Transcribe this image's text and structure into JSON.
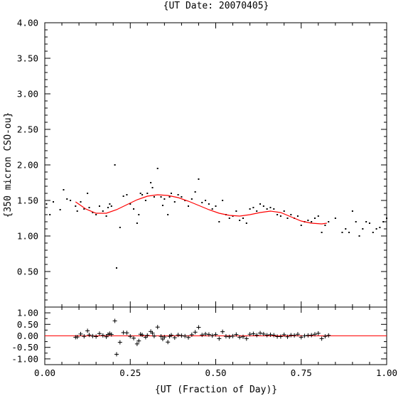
{
  "chart_data": [
    {
      "type": "scatter",
      "title": "{UT Date: 20070405}",
      "xlabel": "",
      "ylabel": "{350 micron CSO-ou}",
      "xlim": [
        0.0,
        1.0
      ],
      "ylim": [
        0.0,
        4.0
      ],
      "yticks": [
        0.5,
        1.0,
        1.5,
        2.0,
        2.5,
        3.0,
        3.5,
        4.0
      ],
      "ytick_labels": [
        "0.50",
        "1.00",
        "1.50",
        "2.00",
        "2.50",
        "3.00",
        "3.50",
        "4.00"
      ],
      "grid": false,
      "colors": {
        "points": "#000000",
        "fit": "#ff0000"
      },
      "series": [
        {
          "kind": "points",
          "x": [
            0.005,
            0.015,
            0.025,
            0.045,
            0.055,
            0.065,
            0.075,
            0.09,
            0.095,
            0.105,
            0.115,
            0.125,
            0.13,
            0.14,
            0.15,
            0.16,
            0.17,
            0.18,
            0.185,
            0.19,
            0.195,
            0.205,
            0.21,
            0.22,
            0.23,
            0.24,
            0.25,
            0.26,
            0.27,
            0.275,
            0.28,
            0.285,
            0.295,
            0.3,
            0.31,
            0.315,
            0.32,
            0.33,
            0.34,
            0.345,
            0.35,
            0.36,
            0.365,
            0.37,
            0.38,
            0.39,
            0.4,
            0.41,
            0.42,
            0.43,
            0.44,
            0.45,
            0.46,
            0.47,
            0.48,
            0.49,
            0.5,
            0.51,
            0.52,
            0.53,
            0.54,
            0.55,
            0.56,
            0.57,
            0.58,
            0.59,
            0.6,
            0.61,
            0.62,
            0.63,
            0.64,
            0.65,
            0.66,
            0.67,
            0.68,
            0.69,
            0.7,
            0.71,
            0.72,
            0.73,
            0.74,
            0.75,
            0.76,
            0.77,
            0.78,
            0.79,
            0.8,
            0.81,
            0.82,
            0.83,
            0.85,
            0.87,
            0.88,
            0.89,
            0.9,
            0.91,
            0.92,
            0.93,
            0.94,
            0.95,
            0.96,
            0.97,
            0.98,
            0.99,
            1.0
          ],
          "y": [
            1.45,
            1.3,
            1.48,
            1.37,
            1.65,
            1.52,
            1.5,
            1.42,
            1.35,
            1.48,
            1.38,
            1.6,
            1.4,
            1.33,
            1.3,
            1.42,
            1.35,
            1.28,
            1.4,
            1.45,
            1.42,
            2.0,
            0.55,
            1.12,
            1.56,
            1.58,
            1.45,
            1.38,
            1.18,
            1.3,
            1.6,
            1.58,
            1.5,
            1.6,
            1.75,
            1.68,
            1.55,
            1.95,
            1.55,
            1.43,
            1.52,
            1.3,
            1.55,
            1.6,
            1.48,
            1.58,
            1.55,
            1.5,
            1.42,
            1.52,
            1.62,
            1.8,
            1.47,
            1.5,
            1.45,
            1.38,
            1.42,
            1.2,
            1.5,
            1.3,
            1.25,
            1.28,
            1.35,
            1.22,
            1.25,
            1.18,
            1.38,
            1.4,
            1.35,
            1.45,
            1.42,
            1.38,
            1.4,
            1.38,
            1.3,
            1.28,
            1.35,
            1.25,
            1.3,
            1.25,
            1.28,
            1.15,
            1.2,
            1.22,
            1.2,
            1.25,
            1.28,
            1.05,
            1.15,
            1.2,
            1.25,
            1.05,
            1.1,
            1.05,
            1.35,
            1.2,
            1.0,
            1.1,
            1.2,
            1.18,
            1.05,
            1.1,
            1.12,
            1.2,
            1.25
          ]
        },
        {
          "kind": "fit",
          "x": [
            0.09,
            0.12,
            0.15,
            0.18,
            0.21,
            0.24,
            0.27,
            0.3,
            0.33,
            0.36,
            0.39,
            0.42,
            0.45,
            0.48,
            0.51,
            0.54,
            0.57,
            0.6,
            0.63,
            0.66,
            0.69,
            0.72,
            0.75,
            0.78,
            0.81,
            0.825
          ],
          "y": [
            1.48,
            1.38,
            1.32,
            1.32,
            1.37,
            1.44,
            1.51,
            1.56,
            1.58,
            1.57,
            1.54,
            1.49,
            1.43,
            1.37,
            1.32,
            1.29,
            1.28,
            1.3,
            1.33,
            1.35,
            1.33,
            1.27,
            1.21,
            1.18,
            1.17,
            1.18
          ]
        }
      ]
    },
    {
      "type": "scatter",
      "title": "",
      "xlabel": "{UT (Fraction of Day)}",
      "ylabel": "",
      "xlim": [
        0.0,
        1.0
      ],
      "ylim": [
        -1.25,
        1.25
      ],
      "xticks": [
        0.0,
        0.25,
        0.5,
        0.75,
        1.0
      ],
      "xtick_labels": [
        "0.00",
        "0.25",
        "0.50",
        "0.75",
        "1.00"
      ],
      "yticks": [
        -1.0,
        -0.5,
        0.0,
        0.5,
        1.0
      ],
      "ytick_labels": [
        "-1.00",
        "-0.50",
        "0.00",
        "0.50",
        "1.00"
      ],
      "grid": false,
      "colors": {
        "points": "#000000",
        "zero_line": "#ff0000"
      },
      "series": [
        {
          "kind": "residuals",
          "x": [
            0.09,
            0.095,
            0.105,
            0.115,
            0.125,
            0.13,
            0.14,
            0.15,
            0.16,
            0.17,
            0.18,
            0.185,
            0.19,
            0.195,
            0.205,
            0.21,
            0.22,
            0.23,
            0.24,
            0.25,
            0.26,
            0.27,
            0.275,
            0.28,
            0.285,
            0.295,
            0.3,
            0.31,
            0.315,
            0.32,
            0.33,
            0.34,
            0.345,
            0.35,
            0.36,
            0.365,
            0.37,
            0.38,
            0.39,
            0.4,
            0.41,
            0.42,
            0.43,
            0.44,
            0.45,
            0.46,
            0.47,
            0.48,
            0.49,
            0.5,
            0.51,
            0.52,
            0.53,
            0.54,
            0.55,
            0.56,
            0.57,
            0.58,
            0.59,
            0.6,
            0.61,
            0.62,
            0.63,
            0.64,
            0.65,
            0.66,
            0.67,
            0.68,
            0.69,
            0.7,
            0.71,
            0.72,
            0.73,
            0.74,
            0.75,
            0.76,
            0.77,
            0.78,
            0.79,
            0.8,
            0.81,
            0.82,
            0.83
          ],
          "y": [
            -0.06,
            -0.05,
            0.08,
            -0.02,
            0.22,
            0.04,
            -0.01,
            -0.03,
            0.1,
            0.02,
            -0.04,
            0.06,
            0.1,
            0.06,
            0.65,
            -0.8,
            -0.28,
            0.14,
            0.13,
            -0.02,
            -0.1,
            -0.35,
            -0.22,
            0.07,
            0.04,
            -0.06,
            0.02,
            0.19,
            0.12,
            -0.01,
            0.38,
            -0.02,
            -0.14,
            -0.05,
            -0.27,
            -0.02,
            0.03,
            -0.08,
            0.04,
            0.01,
            -0.01,
            -0.07,
            0.05,
            0.16,
            0.37,
            0.04,
            0.08,
            0.06,
            0.01,
            0.06,
            -0.12,
            0.18,
            -0.02,
            -0.04,
            -0.01,
            0.06,
            -0.06,
            -0.04,
            -0.12,
            0.07,
            0.09,
            0.03,
            0.12,
            0.08,
            0.03,
            0.05,
            0.03,
            -0.03,
            -0.03,
            0.05,
            -0.04,
            0.03,
            0.02,
            0.07,
            -0.06,
            0.0,
            0.02,
            0.03,
            0.07,
            0.11,
            -0.12,
            -0.02,
            0.02
          ]
        }
      ]
    }
  ]
}
